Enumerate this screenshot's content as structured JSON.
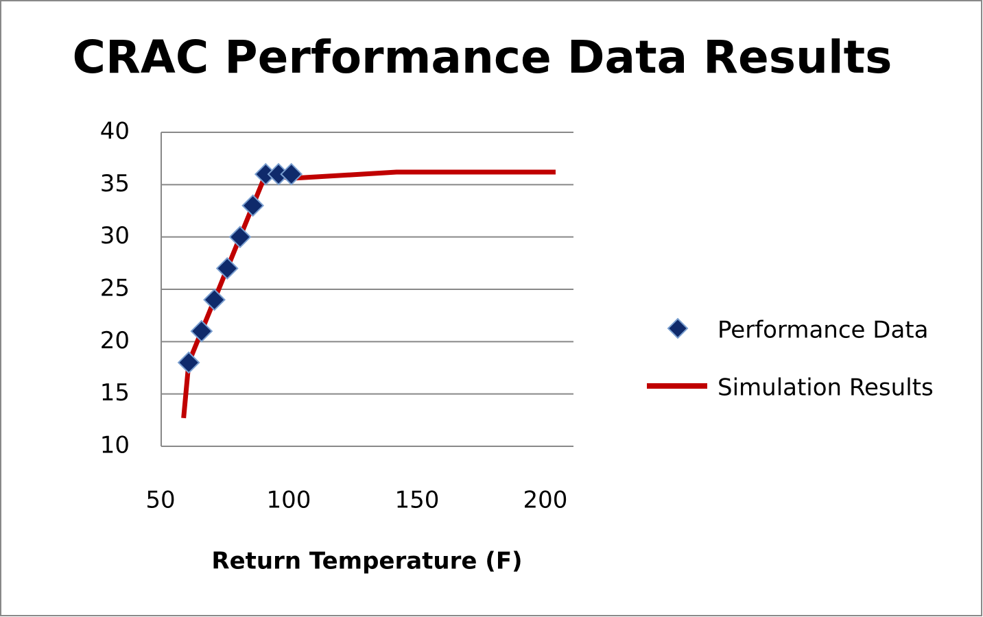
{
  "chart_data": {
    "type": "scatter",
    "title": "CRAC Performance Data Results",
    "x_label": "Return Temperature (F)",
    "xlim": [
      50,
      210
    ],
    "xticks": [
      50,
      100,
      150,
      200
    ],
    "ylim": [
      10,
      40
    ],
    "yticks": [
      10,
      15,
      20,
      25,
      30,
      35,
      40
    ],
    "grid": true,
    "legend": "right",
    "series": [
      {
        "name": "Performance Data",
        "mode": "markers",
        "color": "#0f2a6b",
        "x": [
          61,
          66,
          71,
          76,
          81,
          86,
          91,
          96,
          101
        ],
        "values": [
          18,
          21,
          24,
          27,
          30,
          33,
          36,
          36,
          36
        ]
      },
      {
        "name": "Simulation Results",
        "mode": "line",
        "color": "#c00000",
        "x": [
          59,
          61,
          66,
          71,
          76,
          81,
          86,
          91,
          101,
          142,
          204
        ],
        "values": [
          12.7,
          18,
          21,
          24,
          27,
          30,
          33,
          36,
          35.6,
          36.2,
          36.2
        ]
      }
    ]
  }
}
